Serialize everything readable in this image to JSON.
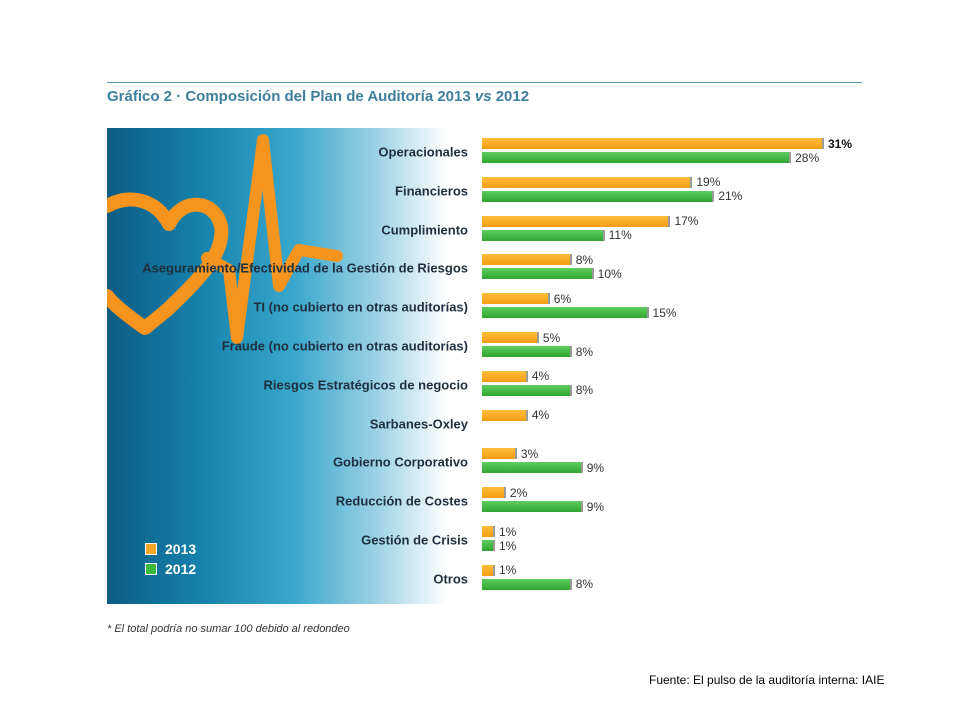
{
  "title": {
    "prefix": "Gráfico 2 · Composición del Plan de Auditoría 2013 ",
    "vs": "vs",
    "suffix": " 2012"
  },
  "footnote": "* El total podría no sumar 100 debido al redondeo",
  "source": "Fuente: El pulso de la auditoría interna: IAIE",
  "colors": {
    "s2013": "#f5a623",
    "s2012": "#3cb83c",
    "panel": "#1a7fa8",
    "heart": "#f7941d"
  },
  "legend": [
    {
      "label": "2013"
    },
    {
      "label": "2012"
    }
  ],
  "chart_data": {
    "type": "bar",
    "orientation": "horizontal",
    "categories": [
      "Operacionales",
      "Financieros",
      "Cumplimiento",
      "Aseguramiento/Efectividad de la Gestión de Riesgos",
      "TI (no cubierto en otras auditorías)",
      "Fraude (no cubierto en otras auditorías)",
      "Riesgos Estratégicos de negocio",
      "Sarbanes-Oxley",
      "Gobierno Corporativo",
      "Reducción de Costes",
      "Gestión de Crisis",
      "Otros"
    ],
    "series": [
      {
        "name": "2013",
        "values": [
          31,
          19,
          17,
          8,
          6,
          5,
          4,
          4,
          3,
          2,
          1,
          1
        ],
        "labels": [
          "31%",
          "19%",
          "17%",
          "8%",
          "6%",
          "5%",
          "4%",
          "4%",
          "3%",
          "2%",
          "1%",
          "1%"
        ]
      },
      {
        "name": "2012",
        "values": [
          28,
          21,
          11,
          10,
          15,
          8,
          8,
          null,
          9,
          9,
          1,
          8
        ],
        "labels": [
          "28%",
          "21%",
          "11%",
          "10%",
          "15%",
          "8%",
          "8%",
          "",
          "9%",
          "9%",
          "1%",
          "8%"
        ]
      }
    ],
    "xlim": [
      0,
      31
    ],
    "legend_position": "bottom-left",
    "grid": false
  }
}
